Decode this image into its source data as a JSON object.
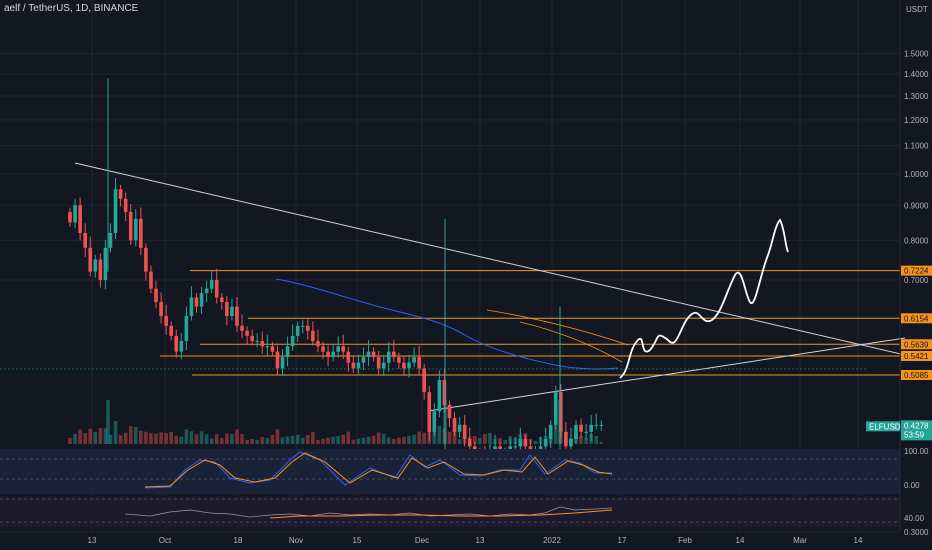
{
  "header": {
    "title": "aelf / TetherUS, 1D, BINANCE"
  },
  "currency": "USDT",
  "colors": {
    "bg": "#131722",
    "up": "#26a69a",
    "down": "#ef5350",
    "level": "#f7931a",
    "ma": "#2962ff",
    "trend": "#d1d4dc",
    "projection": "#ffffff"
  },
  "chart_data": [
    {
      "type": "candlestick",
      "title": "aelf / TetherUS, 1D, BINANCE",
      "x_ticks": [
        "13",
        "Oct",
        "18",
        "Nov",
        "15",
        "Dec",
        "13",
        "2022",
        "17",
        "Feb",
        "14",
        "Mar",
        "14"
      ],
      "y_ticks": [
        "1.5000",
        "1.4000",
        "1.3000",
        "1.2000",
        "1.1000",
        "1.0000",
        "0.9000",
        "0.8000",
        "0.7000",
        "0.3000"
      ],
      "ylim": [
        0.25,
        1.5
      ],
      "scale": "log",
      "price_levels": [
        {
          "value": 0.7224,
          "label": "0.7224"
        },
        {
          "value": 0.6154,
          "label": "0.6154"
        },
        {
          "value": 0.5639,
          "label": "0.5639"
        },
        {
          "value": 0.5421,
          "label": "0.5421"
        },
        {
          "value": 0.5085,
          "label": "0.5085"
        }
      ],
      "last_price": {
        "symbol": "ELFUSDT",
        "value": "0.4278",
        "countdown": "53:59"
      },
      "closes": [
        0.85,
        0.9,
        0.82,
        0.78,
        0.72,
        0.75,
        0.7,
        0.78,
        0.82,
        0.95,
        0.92,
        0.88,
        0.8,
        0.86,
        0.78,
        0.72,
        0.68,
        0.65,
        0.62,
        0.6,
        0.58,
        0.55,
        0.57,
        0.62,
        0.66,
        0.64,
        0.67,
        0.68,
        0.7,
        0.66,
        0.65,
        0.62,
        0.64,
        0.6,
        0.59,
        0.58,
        0.57,
        0.57,
        0.56,
        0.56,
        0.55,
        0.52,
        0.54,
        0.56,
        0.58,
        0.6,
        0.6,
        0.59,
        0.57,
        0.56,
        0.55,
        0.54,
        0.55,
        0.56,
        0.55,
        0.53,
        0.52,
        0.53,
        0.54,
        0.55,
        0.54,
        0.52,
        0.53,
        0.55,
        0.54,
        0.53,
        0.52,
        0.53,
        0.54,
        0.52,
        0.48,
        0.42,
        0.45,
        0.5,
        0.46,
        0.44,
        0.42,
        0.43,
        0.41,
        0.4,
        0.39,
        0.39,
        0.38,
        0.39,
        0.4,
        0.39,
        0.39,
        0.4,
        0.4,
        0.41,
        0.4,
        0.39,
        0.39,
        0.4,
        0.41,
        0.43,
        0.48,
        0.42,
        0.4,
        0.41,
        0.43,
        0.42,
        0.42,
        0.43,
        0.43,
        0.43
      ]
    },
    {
      "type": "line",
      "title": "",
      "y_ticks": [
        "100.00",
        "0.00"
      ],
      "ylim": [
        -20,
        120
      ]
    },
    {
      "type": "line",
      "title": "",
      "y_ticks": [
        "40.00"
      ],
      "ylim": [
        20,
        80
      ]
    }
  ]
}
